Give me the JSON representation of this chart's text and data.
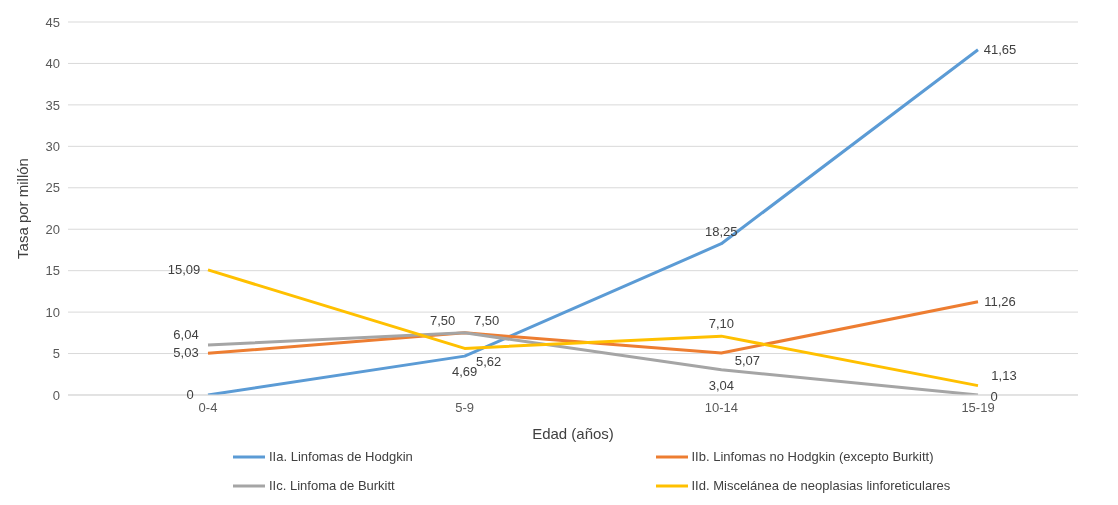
{
  "chart_data": {
    "type": "line",
    "xlabel": "Edad (años)",
    "ylabel": "Tasa por millón",
    "categories": [
      "0-4",
      "5-9",
      "10-14",
      "15-19"
    ],
    "series": [
      {
        "name": "IIa. Linfomas de Hodgkin",
        "color": "#5b9bd5",
        "values": [
          0,
          4.69,
          18.25,
          41.65
        ],
        "value_labels": [
          "0",
          "4,69",
          "18,25",
          "41,65"
        ]
      },
      {
        "name": "IIb. Linfomas no Hodgkin (excepto Burkitt)",
        "color": "#ed7d31",
        "values": [
          5.03,
          7.5,
          5.07,
          11.26
        ],
        "value_labels": [
          "5,03",
          "7,50",
          "5,07",
          "11,26"
        ]
      },
      {
        "name": "IIc. Linfoma de Burkitt",
        "color": "#a5a5a5",
        "values": [
          6.04,
          7.5,
          3.04,
          0
        ],
        "value_labels": [
          "6,04",
          "7,50",
          "3,04",
          "0"
        ]
      },
      {
        "name": "IId. Miscelánea de neoplasias linforeticulares",
        "color": "#ffc000",
        "values": [
          15.09,
          5.62,
          7.1,
          1.13
        ],
        "value_labels": [
          "15,09",
          "5,62",
          "7,10",
          "1,13"
        ]
      }
    ],
    "ylim": [
      0,
      45
    ],
    "yticks": [
      0,
      5,
      10,
      15,
      20,
      25,
      30,
      35,
      40,
      45
    ],
    "grid": "y",
    "legend": "bottom",
    "marker": "none",
    "line_style": "solid"
  }
}
